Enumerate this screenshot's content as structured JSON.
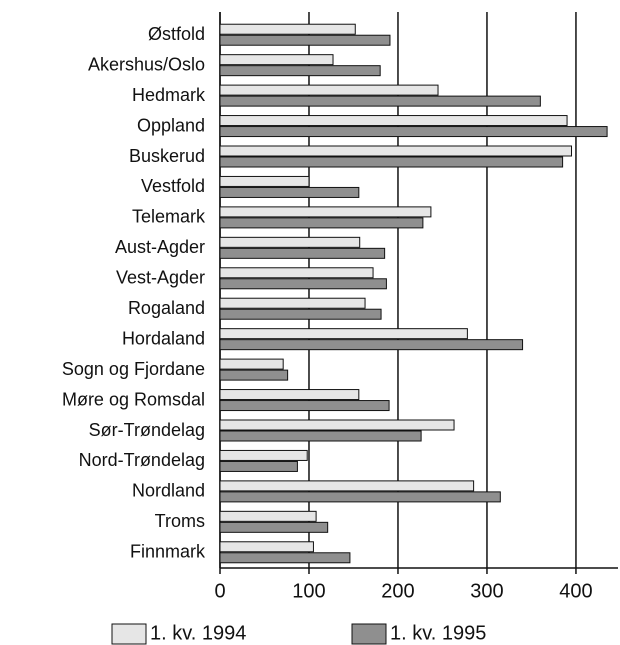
{
  "chart_data": {
    "type": "hbar",
    "categories": [
      "Østfold",
      "Akershus/Oslo",
      "Hedmark",
      "Oppland",
      "Buskerud",
      "Vestfold",
      "Telemark",
      "Aust-Agder",
      "Vest-Agder",
      "Rogaland",
      "Hordaland",
      "Sogn og Fjordane",
      "Møre og Romsdal",
      "Sør-Trøndelag",
      "Nord-Trøndelag",
      "Nordland",
      "Troms",
      "Finnmark"
    ],
    "series": [
      {
        "name": "1. kv. 1994",
        "color": "#e6e6e6",
        "values": [
          152,
          127,
          245,
          390,
          395,
          100,
          237,
          157,
          172,
          163,
          278,
          71,
          156,
          263,
          98,
          285,
          108,
          105
        ]
      },
      {
        "name": "1. kv. 1995",
        "color": "#8f8f8f",
        "values": [
          191,
          180,
          360,
          435,
          385,
          156,
          228,
          185,
          187,
          181,
          340,
          76,
          190,
          226,
          87,
          315,
          121,
          146
        ]
      }
    ],
    "xlim": [
      0,
      445
    ],
    "xticks": [
      0,
      100,
      200,
      300,
      400
    ],
    "grid": true,
    "legend": "bottom"
  }
}
